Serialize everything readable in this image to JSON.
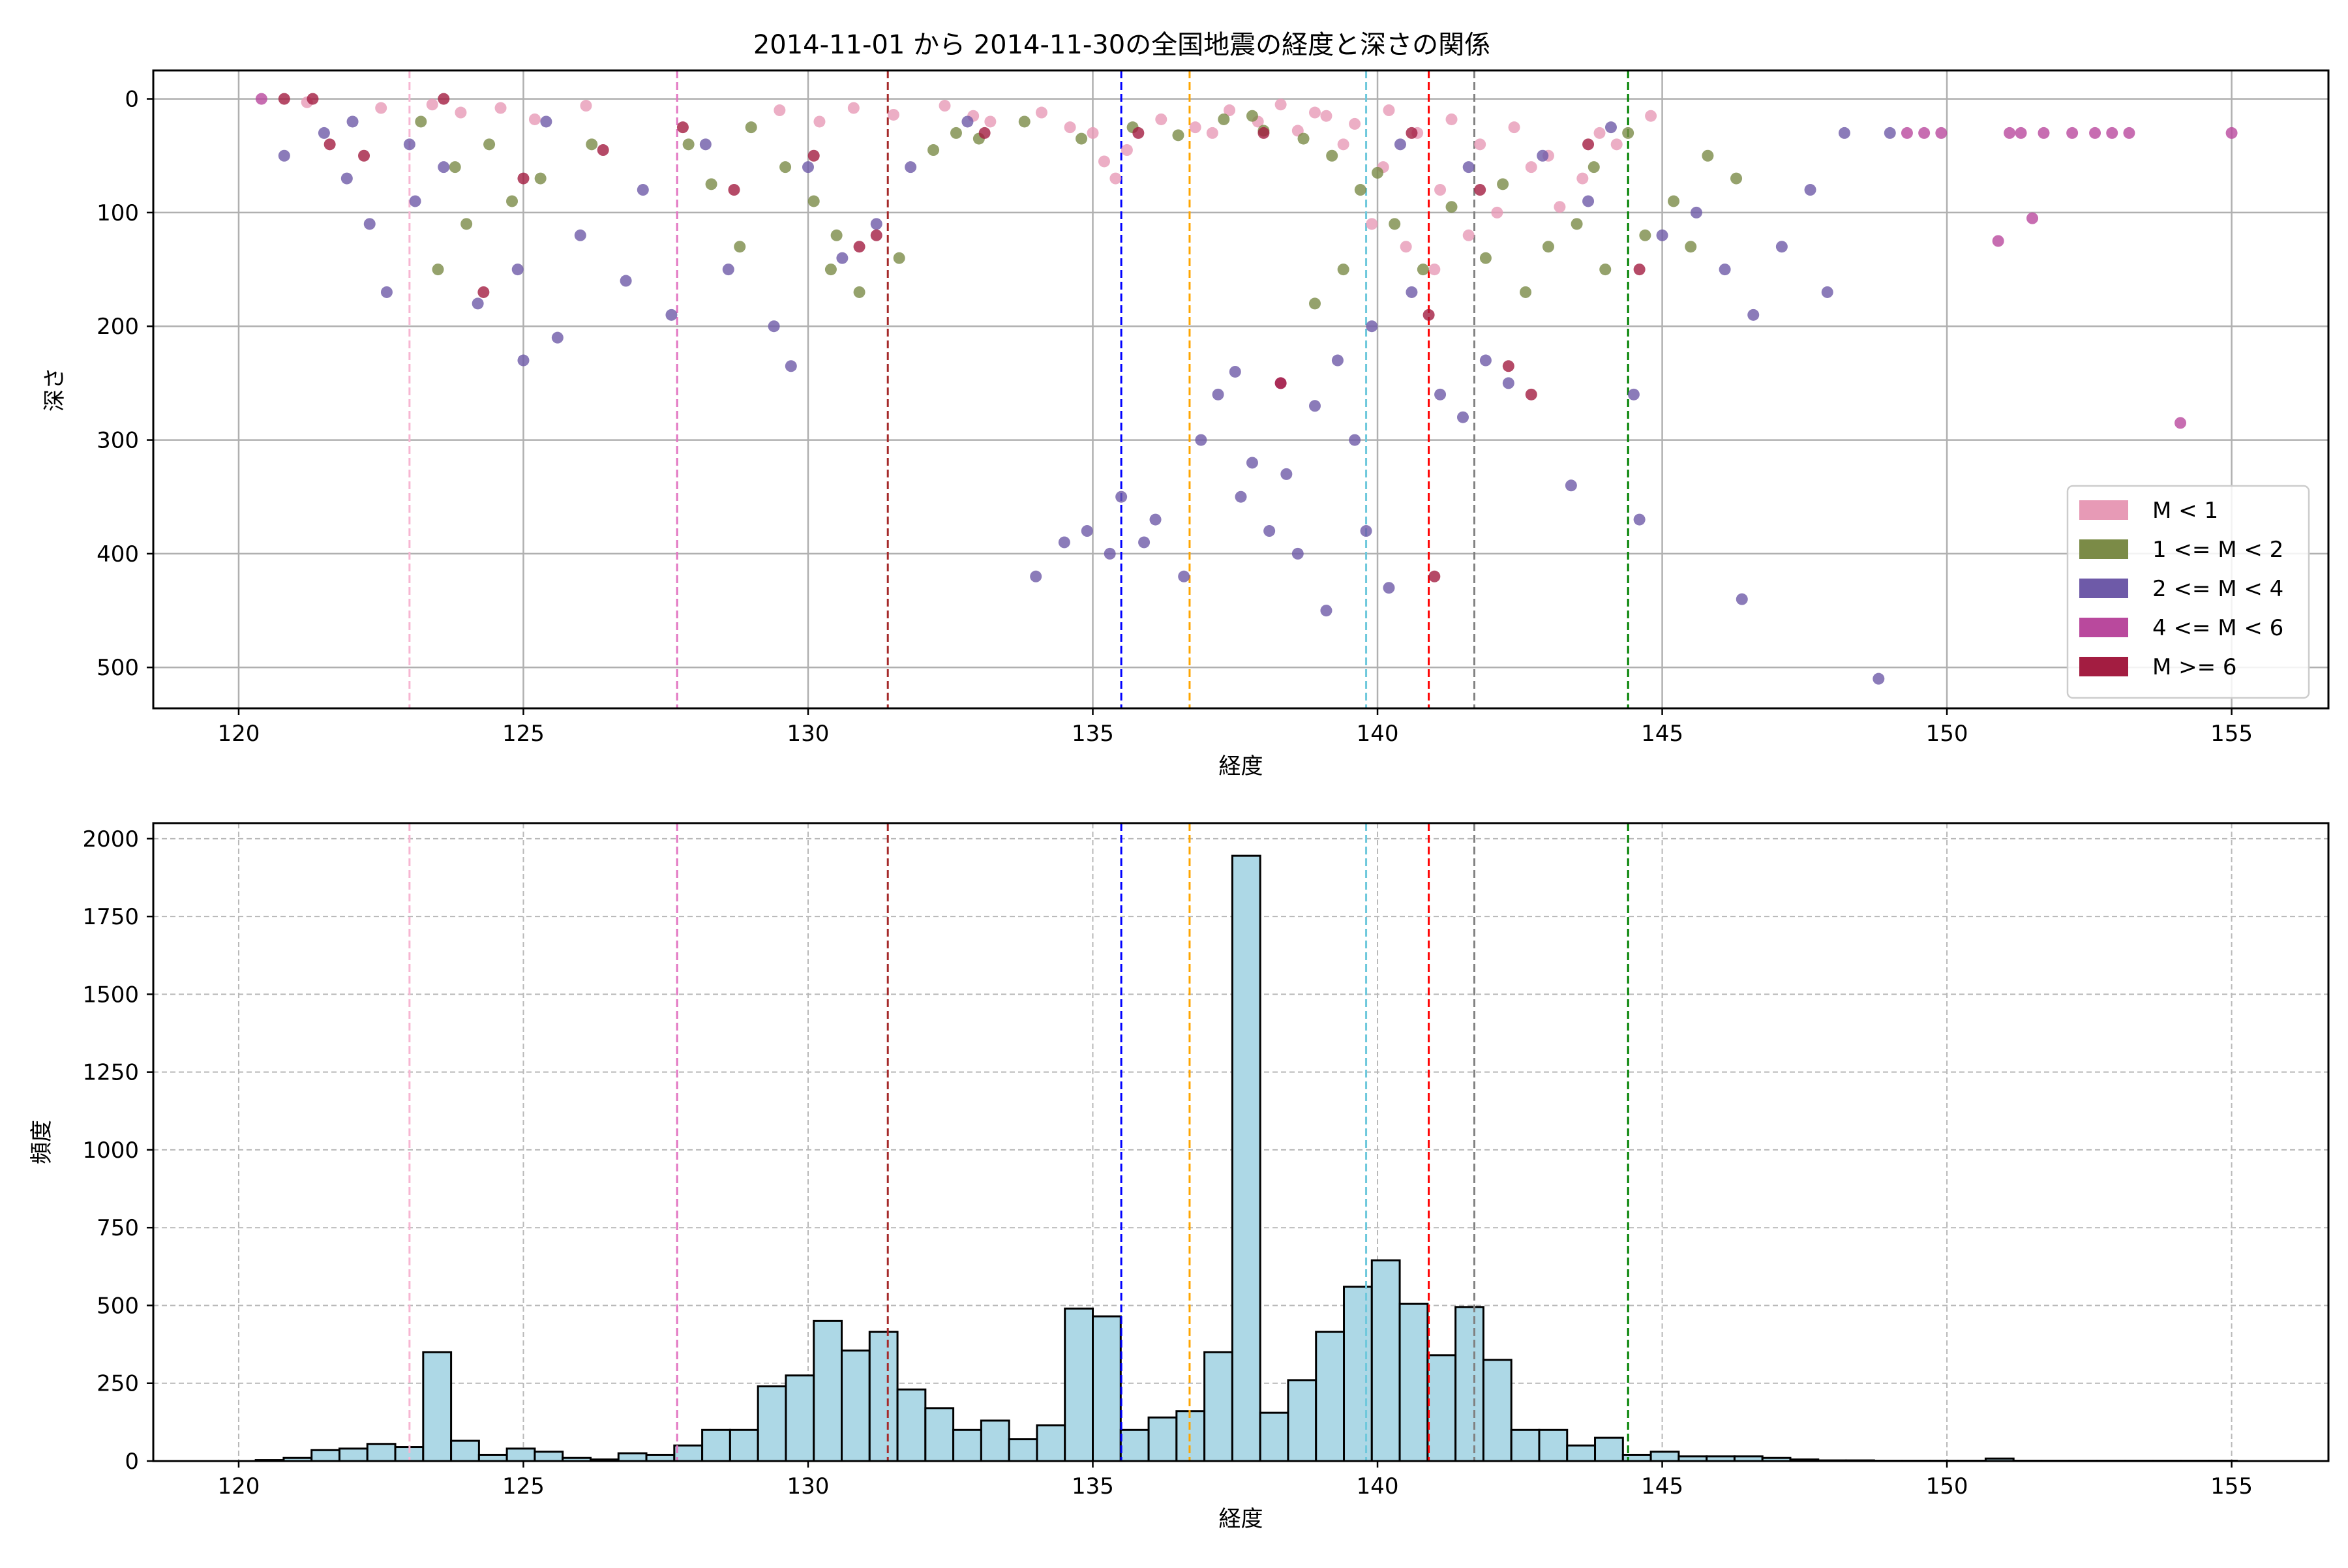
{
  "figure": {
    "title": "2014-11-01 から 2014-11-30の全国地震の経度と深さの関係"
  },
  "chart_data": [
    {
      "type": "scatter",
      "xlabel": "経度",
      "ylabel": "深さ",
      "xlim": [
        118.5,
        156.7
      ],
      "ylim": [
        536,
        -25
      ],
      "y_inverted": true,
      "grid": true,
      "xticks": [
        120,
        125,
        130,
        135,
        140,
        145,
        150,
        155
      ],
      "yticks": [
        0,
        100,
        200,
        300,
        400,
        500
      ],
      "legend_position": "lower-right",
      "legend": [
        {
          "label": "M < 1",
          "color": "#e79ab6"
        },
        {
          "label": "1 <= M < 2",
          "color": "#7b8b47"
        },
        {
          "label": "2 <= M < 4",
          "color": "#6e5aa8"
        },
        {
          "label": "4 <= M < 6",
          "color": "#b9499d"
        },
        {
          "label": "M >= 6",
          "color": "#a31d41"
        }
      ],
      "reference_lines": [
        {
          "x": 123.0,
          "color": "#f7b6d2"
        },
        {
          "x": 127.7,
          "color": "#e377c2"
        },
        {
          "x": 131.4,
          "color": "#a52a2a"
        },
        {
          "x": 135.5,
          "color": "#0000ff"
        },
        {
          "x": 136.7,
          "color": "#ffa500"
        },
        {
          "x": 139.8,
          "color": "#6fc8dc"
        },
        {
          "x": 140.9,
          "color": "#ff0000"
        },
        {
          "x": 141.7,
          "color": "#808080"
        },
        {
          "x": 144.4,
          "color": "#008000"
        }
      ],
      "series": [
        {
          "name": "M < 1",
          "color": "#e79ab6",
          "points": [
            [
              123.4,
              5
            ],
            [
              123.9,
              12
            ],
            [
              124.6,
              8
            ],
            [
              125.2,
              18
            ],
            [
              126.1,
              6
            ],
            [
              129.5,
              10
            ],
            [
              130.2,
              20
            ],
            [
              130.8,
              8
            ],
            [
              131.5,
              14
            ],
            [
              132.4,
              6
            ],
            [
              133.2,
              20
            ],
            [
              134.1,
              12
            ],
            [
              135.0,
              30
            ],
            [
              135.6,
              45
            ],
            [
              135.2,
              55
            ],
            [
              136.2,
              18
            ],
            [
              136.8,
              25
            ],
            [
              137.4,
              10
            ],
            [
              137.9,
              20
            ],
            [
              138.3,
              5
            ],
            [
              138.6,
              28
            ],
            [
              139.1,
              15
            ],
            [
              139.6,
              22
            ],
            [
              140.2,
              10
            ],
            [
              140.7,
              30
            ],
            [
              141.3,
              18
            ],
            [
              141.8,
              40
            ],
            [
              142.4,
              25
            ],
            [
              143.0,
              50
            ],
            [
              143.6,
              70
            ],
            [
              144.2,
              40
            ],
            [
              139.9,
              110
            ],
            [
              140.5,
              130
            ],
            [
              141.0,
              150
            ],
            [
              141.6,
              120
            ],
            [
              142.1,
              100
            ],
            [
              143.2,
              95
            ],
            [
              144.8,
              15
            ],
            [
              121.2,
              3
            ],
            [
              122.5,
              8
            ],
            [
              132.9,
              15
            ],
            [
              134.6,
              25
            ],
            [
              137.1,
              30
            ],
            [
              138.9,
              12
            ],
            [
              139.4,
              40
            ],
            [
              140.1,
              60
            ],
            [
              141.1,
              80
            ],
            [
              142.7,
              60
            ],
            [
              143.9,
              30
            ],
            [
              135.4,
              70
            ]
          ]
        },
        {
          "name": "1 <= M < 2",
          "color": "#7b8b47",
          "points": [
            [
              123.2,
              20
            ],
            [
              123.8,
              60
            ],
            [
              124.0,
              110
            ],
            [
              124.4,
              40
            ],
            [
              125.3,
              70
            ],
            [
              126.2,
              40
            ],
            [
              127.9,
              40
            ],
            [
              128.3,
              75
            ],
            [
              128.8,
              130
            ],
            [
              129.0,
              25
            ],
            [
              129.6,
              60
            ],
            [
              130.1,
              90
            ],
            [
              130.4,
              150
            ],
            [
              130.9,
              170
            ],
            [
              131.6,
              140
            ],
            [
              132.2,
              45
            ],
            [
              133.0,
              35
            ],
            [
              133.8,
              20
            ],
            [
              134.8,
              35
            ],
            [
              135.7,
              25
            ],
            [
              136.5,
              32
            ],
            [
              137.3,
              18
            ],
            [
              138.0,
              28
            ],
            [
              138.7,
              35
            ],
            [
              139.2,
              50
            ],
            [
              139.7,
              80
            ],
            [
              139.4,
              150
            ],
            [
              138.9,
              180
            ],
            [
              140.3,
              110
            ],
            [
              140.8,
              150
            ],
            [
              141.3,
              95
            ],
            [
              141.9,
              140
            ],
            [
              142.6,
              170
            ],
            [
              143.0,
              130
            ],
            [
              143.5,
              110
            ],
            [
              144.0,
              150
            ],
            [
              144.7,
              120
            ],
            [
              145.2,
              90
            ],
            [
              145.8,
              50
            ],
            [
              146.3,
              70
            ],
            [
              145.5,
              130
            ],
            [
              123.5,
              150
            ],
            [
              124.8,
              90
            ],
            [
              132.6,
              30
            ],
            [
              137.8,
              15
            ],
            [
              140.0,
              65
            ],
            [
              142.2,
              75
            ],
            [
              143.8,
              60
            ],
            [
              130.5,
              120
            ],
            [
              144.4,
              30
            ]
          ]
        },
        {
          "name": "2 <= M < 4",
          "color": "#6e5aa8",
          "points": [
            [
              120.8,
              50
            ],
            [
              121.5,
              30
            ],
            [
              121.9,
              70
            ],
            [
              122.3,
              110
            ],
            [
              122.6,
              170
            ],
            [
              123.1,
              90
            ],
            [
              123.6,
              60
            ],
            [
              124.2,
              180
            ],
            [
              124.9,
              150
            ],
            [
              125.0,
              230
            ],
            [
              125.6,
              210
            ],
            [
              126.0,
              120
            ],
            [
              126.8,
              160
            ],
            [
              127.1,
              80
            ],
            [
              127.6,
              190
            ],
            [
              128.6,
              150
            ],
            [
              129.4,
              200
            ],
            [
              129.7,
              235
            ],
            [
              130.0,
              60
            ],
            [
              130.6,
              140
            ],
            [
              131.2,
              110
            ],
            [
              132.8,
              20
            ],
            [
              134.0,
              420
            ],
            [
              134.5,
              390
            ],
            [
              134.9,
              380
            ],
            [
              135.3,
              400
            ],
            [
              135.5,
              350
            ],
            [
              135.9,
              390
            ],
            [
              136.1,
              370
            ],
            [
              136.6,
              420
            ],
            [
              136.9,
              300
            ],
            [
              137.2,
              260
            ],
            [
              137.5,
              240
            ],
            [
              137.6,
              350
            ],
            [
              137.8,
              320
            ],
            [
              138.1,
              380
            ],
            [
              138.4,
              330
            ],
            [
              138.6,
              400
            ],
            [
              138.9,
              270
            ],
            [
              139.1,
              450
            ],
            [
              139.3,
              230
            ],
            [
              139.6,
              300
            ],
            [
              139.8,
              380
            ],
            [
              139.9,
              200
            ],
            [
              140.2,
              430
            ],
            [
              140.6,
              170
            ],
            [
              141.1,
              260
            ],
            [
              141.5,
              280
            ],
            [
              141.9,
              230
            ],
            [
              142.3,
              250
            ],
            [
              143.4,
              340
            ],
            [
              144.6,
              370
            ],
            [
              144.5,
              260
            ],
            [
              145.0,
              120
            ],
            [
              145.6,
              100
            ],
            [
              146.1,
              150
            ],
            [
              146.4,
              440
            ],
            [
              146.6,
              190
            ],
            [
              147.1,
              130
            ],
            [
              147.6,
              80
            ],
            [
              147.9,
              170
            ],
            [
              148.2,
              30
            ],
            [
              148.8,
              510
            ],
            [
              149.0,
              30
            ],
            [
              122.0,
              20
            ],
            [
              123.0,
              40
            ],
            [
              125.4,
              20
            ],
            [
              128.2,
              40
            ],
            [
              131.8,
              60
            ],
            [
              140.4,
              40
            ],
            [
              141.6,
              60
            ],
            [
              142.9,
              50
            ],
            [
              143.7,
              90
            ],
            [
              144.1,
              25
            ]
          ]
        },
        {
          "name": "4 <= M < 6",
          "color": "#b9499d",
          "points": [
            [
              120.4,
              0
            ],
            [
              149.3,
              30
            ],
            [
              149.6,
              30
            ],
            [
              149.9,
              30
            ],
            [
              150.9,
              125
            ],
            [
              151.1,
              30
            ],
            [
              151.3,
              30
            ],
            [
              151.5,
              105
            ],
            [
              151.7,
              30
            ],
            [
              152.2,
              30
            ],
            [
              152.6,
              30
            ],
            [
              152.9,
              30
            ],
            [
              153.2,
              30
            ],
            [
              154.1,
              285
            ],
            [
              155.0,
              30
            ],
            [
              138.3,
              250
            ]
          ]
        },
        {
          "name": "M >= 6",
          "color": "#a31d41",
          "points": [
            [
              120.8,
              0
            ],
            [
              121.3,
              0
            ],
            [
              121.6,
              40
            ],
            [
              122.2,
              50
            ],
            [
              123.6,
              0
            ],
            [
              124.3,
              170
            ],
            [
              125.0,
              70
            ],
            [
              126.4,
              45
            ],
            [
              127.8,
              25
            ],
            [
              128.7,
              80
            ],
            [
              130.1,
              50
            ],
            [
              130.9,
              130
            ],
            [
              131.2,
              120
            ],
            [
              138.3,
              250
            ],
            [
              140.6,
              30
            ],
            [
              141.0,
              420
            ],
            [
              142.3,
              235
            ],
            [
              142.7,
              260
            ],
            [
              143.7,
              40
            ],
            [
              144.6,
              150
            ],
            [
              138.0,
              30
            ],
            [
              140.9,
              190
            ],
            [
              133.1,
              30
            ],
            [
              135.8,
              30
            ],
            [
              141.8,
              80
            ]
          ]
        }
      ]
    },
    {
      "type": "bar",
      "subtype": "histogram",
      "xlabel": "経度",
      "ylabel": "頻度",
      "xlim": [
        118.5,
        156.7
      ],
      "ylim": [
        0,
        2050
      ],
      "grid": true,
      "xticks": [
        120,
        125,
        130,
        135,
        140,
        145,
        150,
        155
      ],
      "yticks": [
        0,
        250,
        500,
        750,
        1000,
        1250,
        1500,
        1750,
        2000
      ],
      "bar_color": "#add8e6",
      "edge_color": "#000000",
      "bin_start": 120.3,
      "bin_width": 0.49,
      "values": [
        3,
        10,
        35,
        40,
        55,
        45,
        350,
        65,
        20,
        40,
        30,
        10,
        5,
        25,
        20,
        50,
        100,
        100,
        240,
        275,
        450,
        355,
        415,
        230,
        170,
        100,
        130,
        70,
        115,
        490,
        465,
        100,
        140,
        160,
        350,
        1945,
        155,
        260,
        415,
        560,
        645,
        505,
        340,
        495,
        325,
        100,
        100,
        50,
        75,
        20,
        30,
        15,
        15,
        15,
        10,
        5,
        2,
        2,
        1,
        1,
        1,
        1,
        8,
        1,
        1,
        1,
        1,
        1,
        1,
        1,
        1
      ],
      "reference_lines": [
        {
          "x": 123.0,
          "color": "#f7b6d2"
        },
        {
          "x": 127.7,
          "color": "#e377c2"
        },
        {
          "x": 131.4,
          "color": "#a52a2a"
        },
        {
          "x": 135.5,
          "color": "#0000ff"
        },
        {
          "x": 136.7,
          "color": "#ffa500"
        },
        {
          "x": 139.8,
          "color": "#6fc8dc"
        },
        {
          "x": 140.9,
          "color": "#ff0000"
        },
        {
          "x": 141.7,
          "color": "#808080"
        },
        {
          "x": 144.4,
          "color": "#008000"
        }
      ]
    }
  ]
}
